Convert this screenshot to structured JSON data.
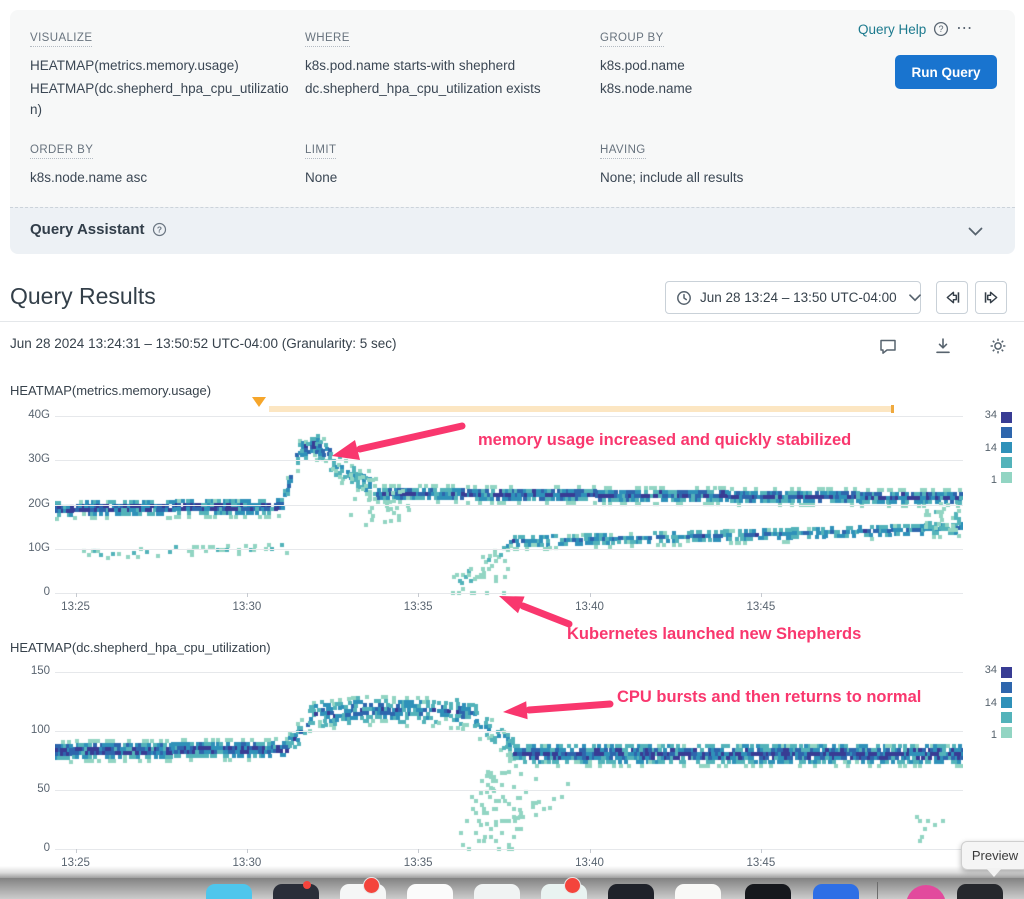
{
  "query_builder": {
    "sections": {
      "visualize": {
        "label": "VISUALIZE",
        "items": [
          "HEATMAP(metrics.memory.usage)",
          "HEATMAP(dc.shepherd_hpa_cpu_utilization)"
        ]
      },
      "where": {
        "label": "WHERE",
        "items": [
          "k8s.pod.name starts-with shepherd",
          "dc.shepherd_hpa_cpu_utilization exists"
        ]
      },
      "group_by": {
        "label": "GROUP BY",
        "items": [
          "k8s.pod.name",
          "k8s.node.name"
        ]
      },
      "order_by": {
        "label": "ORDER BY",
        "items": [
          "k8s.node.name asc"
        ]
      },
      "limit": {
        "label": "LIMIT",
        "items": [
          "None"
        ]
      },
      "having": {
        "label": "HAVING",
        "items": [
          "None; include all results"
        ]
      }
    },
    "query_help_label": "Query Help",
    "run_query_label": "Run Query",
    "query_assistant_label": "Query Assistant"
  },
  "results_header": {
    "title": "Query Results",
    "time_range_label": "Jun 28 13:24 – 13:50 UTC-04:00",
    "subtitle": "Jun 28 2024 13:24:31 – 13:50:52 UTC-04:00 (Granularity: 5 sec)"
  },
  "icons": {
    "more": "⋯"
  },
  "tooltip": {
    "label": "Preview"
  },
  "colors": {
    "run_button_blue": "#1974cf",
    "link_teal": "#1c7a8e",
    "annotation_pink": "#f9376e",
    "marker_orange": "#f6a62b",
    "marker_band_fill": "#fce6c2"
  },
  "chart_data": [
    {
      "type": "heatmap",
      "title": "HEATMAP(metrics.memory.usage)",
      "ylim": [
        0,
        40
      ],
      "yticks": [
        {
          "label": "40G",
          "v": 40
        },
        {
          "label": "30G",
          "v": 30
        },
        {
          "label": "20G",
          "v": 20
        },
        {
          "label": "10G",
          "v": 10
        },
        {
          "label": "0",
          "v": 0
        }
      ],
      "xticks": [
        {
          "label": "13:25",
          "t": 0.6
        },
        {
          "label": "13:30",
          "t": 5.6
        },
        {
          "label": "13:35",
          "t": 10.6
        },
        {
          "label": "13:40",
          "t": 15.6
        },
        {
          "label": "13:45",
          "t": 20.6
        }
      ],
      "time_span_min": 26.5,
      "legend_values": [
        "34",
        "14",
        "1"
      ],
      "palette_low_to_high": [
        "#92d5c3",
        "#53b3ba",
        "#2f91b9",
        "#2e66ad",
        "#383c94"
      ],
      "annotations": [
        "memory usage increased and quickly stabilized",
        "Kubernetes launched new Shepherds"
      ],
      "seed": 7,
      "bands": [
        {
          "t": [
            0,
            6.6
          ],
          "path": [
            [
              0,
              19
            ],
            [
              6.6,
              19.5
            ]
          ],
          "spread": 2.2,
          "density": 0.97
        },
        {
          "t": [
            6.6,
            7.1
          ],
          "path": [
            [
              6.6,
              20
            ],
            [
              7.1,
              31.5
            ]
          ],
          "spread": 2.6,
          "density": 0.75
        },
        {
          "t": [
            7.1,
            8.0
          ],
          "path": [
            [
              7.1,
              32
            ],
            [
              7.5,
              33.5
            ],
            [
              8.0,
              31.5
            ]
          ],
          "spread": 3.0,
          "density": 0.8
        },
        {
          "t": [
            8.0,
            9.4
          ],
          "path": [
            [
              8.0,
              30
            ],
            [
              8.7,
              26
            ],
            [
              9.4,
              23.5
            ]
          ],
          "spread": 3.2,
          "density": 0.5
        },
        {
          "t": [
            9.4,
            26.45
          ],
          "path": [
            [
              9.4,
              22.5
            ],
            [
              26.45,
              21.5
            ]
          ],
          "spread": 1.9,
          "density": 0.97
        },
        {
          "t": [
            0.8,
            6.8
          ],
          "path": [
            [
              0.8,
              8.8
            ],
            [
              3.0,
              9.6
            ],
            [
              6.8,
              10.3
            ]
          ],
          "spread": 1.2,
          "density": 0.3
        },
        {
          "t": [
            8.6,
            10.3
          ],
          "lo": [
            [
              8.6,
              14
            ],
            [
              10.3,
              16
            ]
          ],
          "hi": [
            [
              8.6,
              28
            ],
            [
              10.3,
              23
            ]
          ],
          "density": 0.13
        },
        {
          "t": [
            11.6,
            13.2
          ],
          "path": [
            [
              11.6,
              1.5
            ],
            [
              12.3,
              5
            ],
            [
              13.2,
              10.5
            ]
          ],
          "spread": 2.4,
          "density": 0.35
        },
        {
          "t": [
            11.6,
            13.2
          ],
          "lo": 0,
          "hi": [
            [
              11.6,
              2
            ],
            [
              13.2,
              9
            ]
          ],
          "density": 0.15
        },
        {
          "t": [
            13.2,
            26.45
          ],
          "path": [
            [
              13.2,
              11.5
            ],
            [
              20,
              13
            ],
            [
              26.45,
              14.5
            ]
          ],
          "spread": 1.7,
          "density": 0.7
        },
        {
          "t": [
            25.4,
            26.45
          ],
          "lo": [
            [
              25.4,
              15
            ],
            [
              26.45,
              14
            ]
          ],
          "hi": [
            [
              25.4,
              20
            ],
            [
              26.45,
              20.5
            ]
          ],
          "density": 0.3
        }
      ]
    },
    {
      "type": "heatmap",
      "title": "HEATMAP(dc.shepherd_hpa_cpu_utilization)",
      "ylim": [
        0,
        150
      ],
      "yticks": [
        {
          "label": "150",
          "v": 150
        },
        {
          "label": "100",
          "v": 100
        },
        {
          "label": "50",
          "v": 50
        },
        {
          "label": "0",
          "v": 0
        }
      ],
      "xticks": [
        {
          "label": "13:25",
          "t": 0.6
        },
        {
          "label": "13:30",
          "t": 5.6
        },
        {
          "label": "13:35",
          "t": 10.6
        },
        {
          "label": "13:40",
          "t": 15.6
        },
        {
          "label": "13:45",
          "t": 20.6
        }
      ],
      "time_span_min": 26.5,
      "legend_values": [
        "34",
        "14",
        "1"
      ],
      "palette_low_to_high": [
        "#92d5c3",
        "#53b3ba",
        "#2f91b9",
        "#2e66ad",
        "#383c94"
      ],
      "annotations": [
        "CPU bursts and then returns to normal"
      ],
      "seed": 11,
      "bands": [
        {
          "t": [
            0,
            6.8
          ],
          "path": [
            [
              0,
              83
            ],
            [
              6.8,
              85
            ]
          ],
          "spread": 9,
          "density": 0.97
        },
        {
          "t": [
            6.8,
            7.4
          ],
          "path": [
            [
              6.8,
              88
            ],
            [
              7.4,
              108
            ]
          ],
          "spread": 11,
          "density": 0.7
        },
        {
          "t": [
            7.4,
            12.3
          ],
          "path": [
            [
              7.4,
              113
            ],
            [
              9,
              118
            ],
            [
              11,
              117
            ],
            [
              12.3,
              114
            ]
          ],
          "spread": 13,
          "density": 0.75
        },
        {
          "t": [
            12.3,
            13.4
          ],
          "path": [
            [
              12.3,
              108
            ],
            [
              13.4,
              85
            ]
          ],
          "spread": 13,
          "density": 0.5
        },
        {
          "t": [
            13.4,
            26.45
          ],
          "path": [
            [
              13.4,
              80
            ],
            [
              26.45,
              80
            ]
          ],
          "spread": 10,
          "density": 0.95
        },
        {
          "t": [
            11.8,
            13.6
          ],
          "lo": 0,
          "hi": [
            [
              11.8,
              25
            ],
            [
              12.6,
              70
            ],
            [
              13.6,
              30
            ]
          ],
          "density": 0.18
        },
        {
          "t": [
            12.4,
            15.0
          ],
          "lo": [
            [
              12.4,
              20
            ],
            [
              15,
              35
            ]
          ],
          "hi": [
            [
              12.4,
              70
            ],
            [
              15,
              58
            ]
          ],
          "density": 0.1
        },
        {
          "t": [
            25.1,
            26.2
          ],
          "lo": 3,
          "hi": [
            [
              25.1,
              40
            ],
            [
              26.2,
              22
            ]
          ],
          "density": 0.07
        }
      ]
    }
  ]
}
